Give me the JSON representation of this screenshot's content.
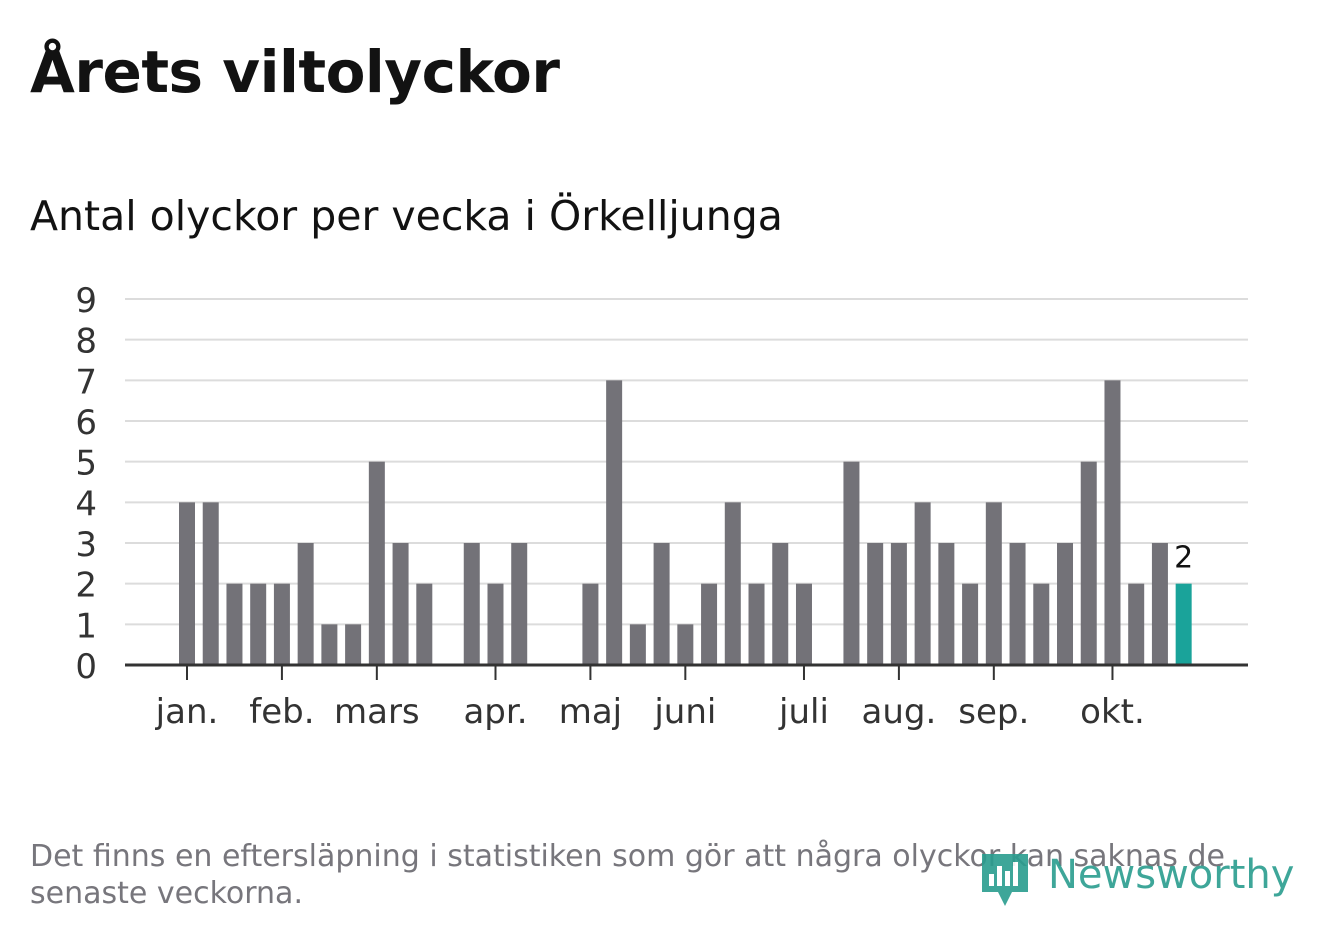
{
  "header": {
    "title": "Årets viltolyckor",
    "subtitle": "Antal olyckor per vecka i Örkelljunga"
  },
  "footer": {
    "note": "Det finns en eftersläpning i statistiken som gör att några olyckor kan saknas de senaste veckorna.",
    "brand": "Newsworthy"
  },
  "colors": {
    "bar": "#737278",
    "highlight": "#1aa39a",
    "grid": "#dcdcdc",
    "axis": "#333333",
    "text": "#333333",
    "brand": "#2a9d8f"
  },
  "chart_data": {
    "type": "bar",
    "title": "Antal olyckor per vecka i Örkelljunga",
    "xlabel": "",
    "ylabel": "",
    "ylim": [
      0,
      9
    ],
    "yticks": [
      0,
      1,
      2,
      3,
      4,
      5,
      6,
      7,
      8,
      9
    ],
    "grid": true,
    "weeks": [
      1,
      2,
      3,
      4,
      5,
      6,
      7,
      8,
      9,
      10,
      11,
      12,
      13,
      14,
      15,
      16,
      17,
      18,
      19,
      20,
      21,
      22,
      23,
      24,
      25,
      26,
      27,
      28,
      29,
      30,
      31,
      32,
      33,
      34,
      35,
      36,
      37,
      38,
      39,
      40,
      41,
      42,
      43,
      44,
      45,
      46,
      47
    ],
    "values": [
      0,
      0,
      4,
      4,
      2,
      2,
      2,
      3,
      1,
      1,
      5,
      3,
      2,
      0,
      3,
      2,
      3,
      0,
      0,
      2,
      7,
      1,
      3,
      1,
      2,
      4,
      2,
      3,
      2,
      0,
      5,
      3,
      3,
      4,
      3,
      2,
      4,
      3,
      2,
      3,
      5,
      7,
      2,
      3,
      2,
      0,
      0
    ],
    "highlight_index": 44,
    "highlight_label": "2",
    "month_ticks": [
      {
        "label": "jan.",
        "week": 3
      },
      {
        "label": "feb.",
        "week": 7
      },
      {
        "label": "mars",
        "week": 11
      },
      {
        "label": "apr.",
        "week": 16
      },
      {
        "label": "maj",
        "week": 20
      },
      {
        "label": "juni",
        "week": 24
      },
      {
        "label": "juli",
        "week": 29
      },
      {
        "label": "aug.",
        "week": 33
      },
      {
        "label": "sep.",
        "week": 37
      },
      {
        "label": "okt.",
        "week": 42
      }
    ]
  }
}
